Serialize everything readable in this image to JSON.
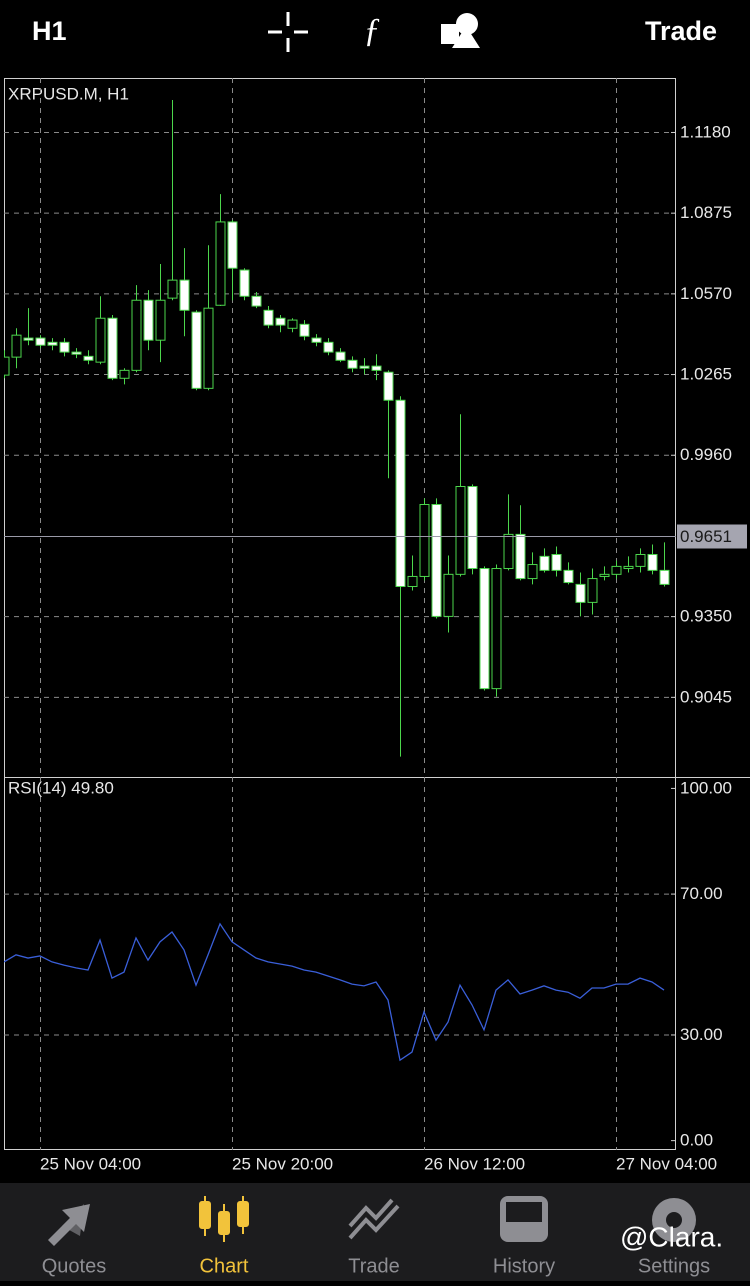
{
  "top_bar": {
    "timeframe": "H1",
    "trade": "Trade"
  },
  "chart_data": [
    {
      "type": "candlestick",
      "title": "XRPUSD.M, H1",
      "open": [
        1.0261,
        1.0329,
        1.0401,
        1.0401,
        1.0385,
        1.0385,
        1.0348,
        1.0332,
        1.031,
        1.0476,
        1.0249,
        1.0279,
        1.0544,
        1.0393,
        1.0552,
        1.062,
        1.0499,
        1.0211,
        1.0525,
        1.084,
        1.0658,
        1.0559,
        1.0506,
        1.0476,
        1.0438,
        1.0453,
        1.0401,
        1.0385,
        1.0348,
        1.0317,
        1.0295,
        1.0295,
        1.0272,
        1.0166,
        0.9462,
        0.95,
        0.9772,
        0.9349,
        0.9508,
        0.984,
        0.953,
        0.9076,
        0.953,
        0.9659,
        0.9492,
        0.9576,
        0.9583,
        0.9523,
        0.947,
        0.9402,
        0.95,
        0.9508,
        0.953,
        0.9538,
        0.9583,
        0.9523
      ],
      "high": [
        1.0355,
        1.0438,
        1.0514,
        1.0412,
        1.0401,
        1.0401,
        1.0363,
        1.0355,
        1.0559,
        1.0488,
        1.0287,
        1.0601,
        1.0582,
        1.0681,
        1.1301,
        1.0741,
        1.0506,
        1.0752,
        1.0945,
        1.0847,
        1.0665,
        1.0575,
        1.0522,
        1.0488,
        1.0476,
        1.0469,
        1.0416,
        1.0401,
        1.0363,
        1.0332,
        1.0325,
        1.034,
        1.0279,
        1.0181,
        0.9579,
        0.9795,
        0.9795,
        0.9579,
        1.0113,
        0.9848,
        0.9538,
        0.9545,
        0.981,
        0.9769,
        0.9591,
        0.9606,
        0.9613,
        0.9553,
        0.9515,
        0.953,
        0.9538,
        0.956,
        0.9576,
        0.9606,
        0.9621,
        0.9629
      ],
      "low": [
        1.0249,
        1.0287,
        1.0374,
        1.0363,
        1.0355,
        1.0332,
        1.0325,
        1.0302,
        1.0302,
        1.0242,
        1.0226,
        1.0272,
        1.0355,
        1.031,
        1.0544,
        1.0408,
        1.0204,
        1.0204,
        1.0522,
        1.0544,
        1.0544,
        1.0514,
        1.0438,
        1.0423,
        1.0423,
        1.0393,
        1.037,
        1.0336,
        1.031,
        1.0272,
        1.0264,
        1.0242,
        0.9871,
        0.8819,
        0.9447,
        0.9485,
        0.9341,
        0.9288,
        0.95,
        0.9508,
        0.9069,
        0.9046,
        0.9523,
        0.9485,
        0.947,
        0.9515,
        0.95,
        0.947,
        0.9349,
        0.9356,
        0.9485,
        0.9492,
        0.9515,
        0.9515,
        0.9508,
        0.9462
      ],
      "close": [
        1.0329,
        1.0412,
        1.0393,
        1.0374,
        1.0374,
        1.0348,
        1.034,
        1.0317,
        1.0476,
        1.0249,
        1.0279,
        1.0544,
        1.0393,
        1.0544,
        1.062,
        1.0506,
        1.0211,
        1.0514,
        1.084,
        1.0665,
        1.0559,
        1.0522,
        1.045,
        1.045,
        1.0469,
        1.0408,
        1.0385,
        1.0348,
        1.0317,
        1.0287,
        1.0287,
        1.0279,
        1.0166,
        0.9462,
        0.95,
        0.9772,
        0.9349,
        0.9508,
        0.984,
        0.953,
        0.9076,
        0.953,
        0.9659,
        0.9492,
        0.9545,
        0.9523,
        0.9523,
        0.9477,
        0.9402,
        0.9492,
        0.9508,
        0.9538,
        0.9538,
        0.9583,
        0.9523,
        0.947
      ],
      "up_color": "#000000",
      "down_color": "#ffffff",
      "wick_color": "#4cd64c",
      "current_price": 0.9651,
      "ylim": [
        0.8742,
        1.1384
      ],
      "yticks": [
        {
          "value": 1.118,
          "label": "1.1180"
        },
        1.0875,
        {
          "value": 1.057,
          "label": "1.0570"
        },
        1.0265,
        {
          "value": 0.996,
          "label": "0.9960"
        },
        {
          "value": 0.935,
          "label": "0.9350"
        },
        0.9045
      ],
      "grid": true
    },
    {
      "type": "line",
      "title": "RSI(14) 49.80",
      "categories": [
        null,
        null,
        null,
        "25 Nov 04:00",
        null,
        null,
        null,
        null,
        null,
        null,
        null,
        null,
        null,
        null,
        null,
        null,
        null,
        null,
        null,
        "25 Nov 20:00",
        null,
        null,
        null,
        null,
        null,
        null,
        null,
        null,
        null,
        null,
        null,
        null,
        null,
        null,
        null,
        "26 Nov 12:00",
        null,
        null,
        null,
        null,
        null,
        null,
        null,
        null,
        null,
        null,
        null,
        null,
        null,
        null,
        null,
        "27 Nov 04:00",
        null,
        null,
        null,
        null
      ],
      "values": [
        50.6,
        52.6,
        51.7,
        52.3,
        50.6,
        49.7,
        48.9,
        48.3,
        56.8,
        46.0,
        47.7,
        57.4,
        51.1,
        56.3,
        59.1,
        54.0,
        44.0,
        52.6,
        61.4,
        56.3,
        54.0,
        51.7,
        50.6,
        50.0,
        49.4,
        48.3,
        47.7,
        46.6,
        45.5,
        44.3,
        43.8,
        44.9,
        39.8,
        22.7,
        25.0,
        36.4,
        28.4,
        33.5,
        44.0,
        38.4,
        31.3,
        42.6,
        45.5,
        41.5,
        42.6,
        43.8,
        42.6,
        42.0,
        40.3,
        43.2,
        43.2,
        44.3,
        44.3,
        46.0,
        44.9,
        42.6
      ],
      "color": "#3a5fd9",
      "ylim": [
        -2.8,
        103.1
      ],
      "yticks": [
        {
          "value": 100,
          "label": "100.00"
        },
        {
          "value": 70,
          "label": "70.00"
        },
        {
          "value": 30,
          "label": "30.00"
        },
        {
          "value": 0,
          "label": "0.00"
        }
      ],
      "grid": true
    }
  ],
  "tabs": [
    "Quotes",
    "Chart",
    "Trade",
    "History",
    "Settings"
  ],
  "watermark": "@Clara."
}
